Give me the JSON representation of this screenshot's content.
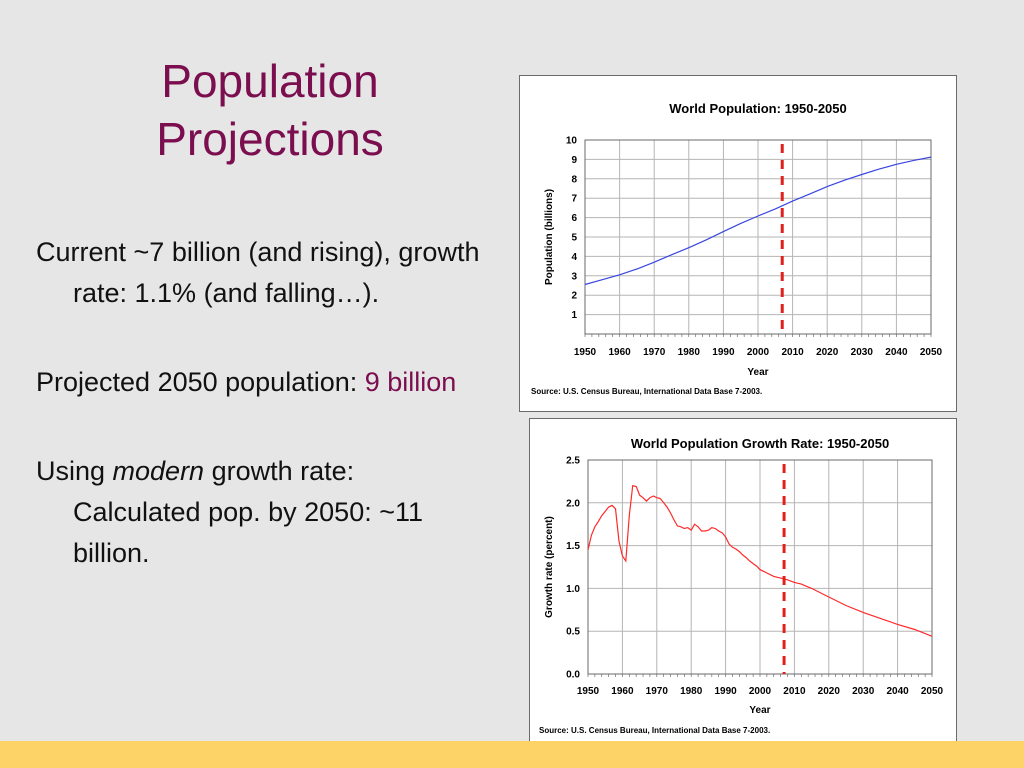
{
  "slide": {
    "title_line1": "Population",
    "title_line2": "Projections",
    "bullet1": "Current ~7 billion (and rising), growth rate: 1.1% (and falling…).",
    "bullet2_prefix": "Projected 2050 population: ",
    "bullet2_highlight": "9 billion",
    "bullet3_prefix": "Using ",
    "bullet3_em": "modern",
    "bullet3_suffix": " growth rate: Calculated pop. by 2050: ~11 billion.",
    "colors": {
      "title": "#7a0e4e",
      "highlight": "#7a0e4e",
      "background": "#e6e6e6",
      "bottom_bar": "#fdd267"
    }
  },
  "chart_data": [
    {
      "type": "line",
      "title": "World Population: 1950-2050",
      "xlabel": "Year",
      "ylabel": "Population (billions)",
      "source": "Source: U.S. Census Bureau, International Data Base 7-2003.",
      "xlim": [
        1950,
        2050
      ],
      "ylim": [
        0,
        10
      ],
      "xticks": [
        "1950",
        "1960",
        "1970",
        "1980",
        "1990",
        "2000",
        "2010",
        "2020",
        "2030",
        "2040",
        "2050"
      ],
      "yticks": [
        "1",
        "2",
        "3",
        "4",
        "5",
        "6",
        "7",
        "8",
        "9",
        "10"
      ],
      "grid": true,
      "series": [
        {
          "color": "#3a46e0",
          "x": [
            1950,
            1955,
            1960,
            1965,
            1970,
            1975,
            1980,
            1985,
            1990,
            1995,
            2000,
            2005,
            2010,
            2015,
            2020,
            2025,
            2030,
            2035,
            2040,
            2045,
            2050
          ],
          "y": [
            2.55,
            2.8,
            3.05,
            3.35,
            3.7,
            4.08,
            4.45,
            4.85,
            5.28,
            5.7,
            6.08,
            6.45,
            6.85,
            7.22,
            7.6,
            7.93,
            8.22,
            8.5,
            8.75,
            8.95,
            9.12
          ]
        }
      ],
      "marker": {
        "x": 2007,
        "color": "#e0201c",
        "style": "dashed"
      }
    },
    {
      "type": "line",
      "title": "World Population Growth Rate: 1950-2050",
      "xlabel": "Year",
      "ylabel": "Growth rate (percent)",
      "source": "Source: U.S. Census Bureau, International Data Base 7-2003.",
      "xlim": [
        1950,
        2050
      ],
      "ylim": [
        0,
        2.5
      ],
      "xticks": [
        "1950",
        "1960",
        "1970",
        "1980",
        "1990",
        "2000",
        "2010",
        "2020",
        "2030",
        "2040",
        "2050"
      ],
      "yticks": [
        "0.0",
        "0.5",
        "1.0",
        "1.5",
        "2.0",
        "2.5"
      ],
      "grid": true,
      "series": [
        {
          "color": "#ff2a2a",
          "x": [
            1950,
            1951,
            1952,
            1953,
            1954,
            1955,
            1956,
            1957,
            1958,
            1959,
            1960,
            1961,
            1962,
            1963,
            1964,
            1965,
            1966,
            1967,
            1968,
            1969,
            1970,
            1971,
            1972,
            1973,
            1974,
            1975,
            1976,
            1977,
            1978,
            1979,
            1980,
            1981,
            1982,
            1983,
            1984,
            1985,
            1986,
            1987,
            1988,
            1989,
            1990,
            1991,
            1992,
            1993,
            1994,
            1995,
            1996,
            1997,
            1998,
            1999,
            2000,
            2002,
            2004,
            2006,
            2008,
            2010,
            2012,
            2015,
            2020,
            2025,
            2030,
            2035,
            2040,
            2045,
            2050
          ],
          "y": [
            1.45,
            1.62,
            1.72,
            1.78,
            1.85,
            1.9,
            1.95,
            1.97,
            1.93,
            1.55,
            1.38,
            1.32,
            1.85,
            2.2,
            2.19,
            2.09,
            2.06,
            2.02,
            2.06,
            2.08,
            2.06,
            2.05,
            2.0,
            1.95,
            1.88,
            1.8,
            1.73,
            1.72,
            1.7,
            1.71,
            1.68,
            1.75,
            1.72,
            1.67,
            1.67,
            1.68,
            1.71,
            1.7,
            1.67,
            1.65,
            1.6,
            1.52,
            1.48,
            1.46,
            1.43,
            1.39,
            1.36,
            1.32,
            1.29,
            1.26,
            1.22,
            1.18,
            1.14,
            1.12,
            1.1,
            1.07,
            1.05,
            1.0,
            0.9,
            0.8,
            0.72,
            0.65,
            0.58,
            0.52,
            0.44
          ]
        }
      ],
      "marker": {
        "x": 2007,
        "color": "#e0201c",
        "style": "dashed"
      }
    }
  ]
}
